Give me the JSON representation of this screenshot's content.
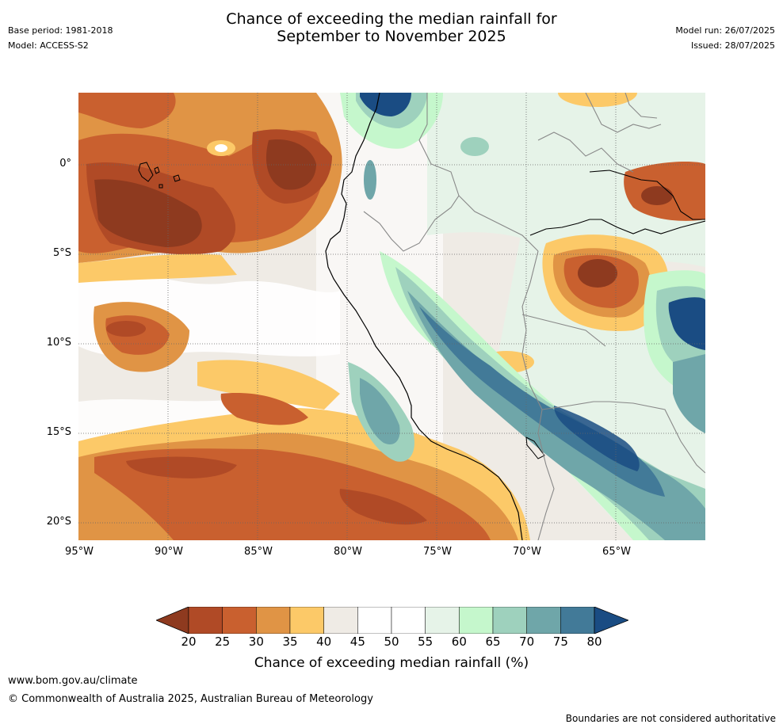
{
  "header": {
    "base_period": "Base period: 1981-2018",
    "model": "Model: ACCESS-S2",
    "title_line1": "Chance of exceeding the median rainfall for",
    "title_line2": "September to November 2025",
    "model_run": "Model run: 26/07/2025",
    "issued": "Issued: 28/07/2025"
  },
  "map": {
    "lat_labels": [
      "0°",
      "5°S",
      "10°S",
      "15°S",
      "20°S"
    ],
    "lon_labels": [
      "95°W",
      "90°W",
      "85°W",
      "80°W",
      "75°W",
      "70°W",
      "65°W"
    ],
    "lat_range": [
      -21,
      4
    ],
    "lon_range": [
      -95,
      -60
    ]
  },
  "colorbar": {
    "ticks": [
      "20",
      "25",
      "30",
      "35",
      "40",
      "45",
      "50",
      "55",
      "60",
      "65",
      "70",
      "75",
      "80"
    ],
    "colors": [
      "#8e3a1f",
      "#b04a26",
      "#c9602f",
      "#e09445",
      "#fcc968",
      "#efebe5",
      "#ffffff",
      "#ffffff",
      "#e6f3e8",
      "#c5f7cc",
      "#9ed1bd",
      "#6fa6a9",
      "#427a98",
      "#1a4c83"
    ],
    "label": "Chance of exceeding median rainfall (%)"
  },
  "footer": {
    "url": "www.bom.gov.au/climate",
    "copyright": "© Commonwealth of Australia 2025, Australian Bureau of Meteorology",
    "disclaimer": "Boundaries are not considered authoritative"
  }
}
